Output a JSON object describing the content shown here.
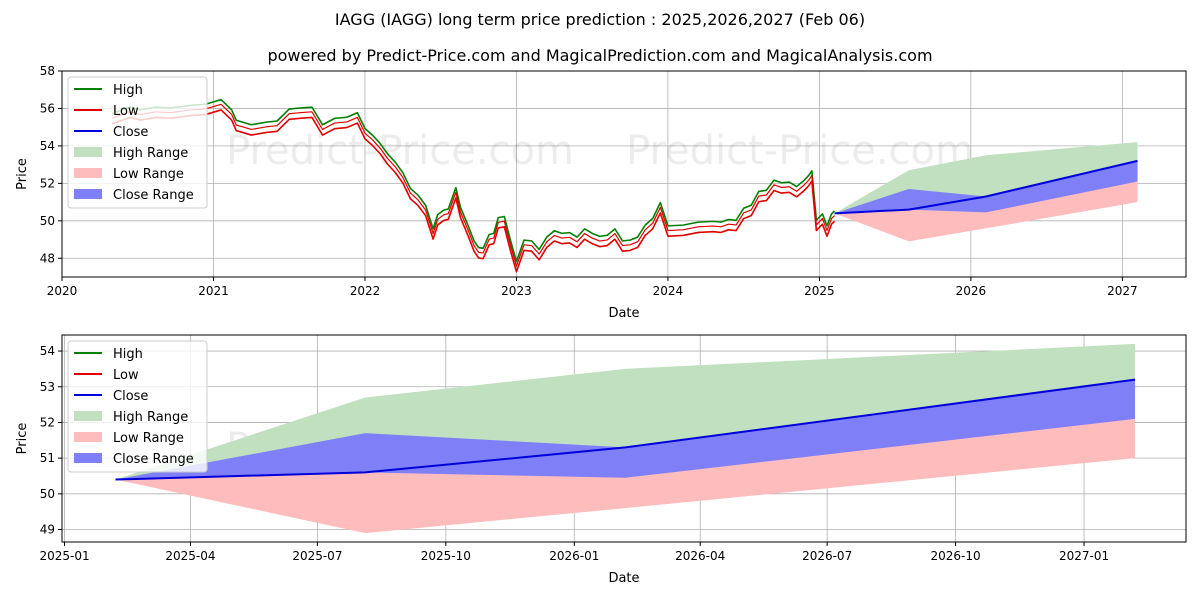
{
  "title": "IAGG (IAGG) long term price prediction : 2025,2026,2027 (Feb 06)",
  "subtitle": "powered by Predict-Price.com and MagicalPrediction.com and MagicalAnalysis.com",
  "watermark": "Predict-Price.com",
  "colors": {
    "high": "#008000",
    "low": "#e00000",
    "close": "#0000dd",
    "high_range": "#c0e0c0",
    "low_range": "#ffbcbc",
    "close_range": "#7f7ff8",
    "grid": "#b0b0b0"
  },
  "legend": {
    "items": [
      {
        "label": "High",
        "kind": "line",
        "color_key": "high"
      },
      {
        "label": "Low",
        "kind": "line",
        "color_key": "low"
      },
      {
        "label": "Close",
        "kind": "line",
        "color_key": "close"
      },
      {
        "label": "High Range",
        "kind": "patch",
        "color_key": "high_range"
      },
      {
        "label": "Low Range",
        "kind": "patch",
        "color_key": "low_range"
      },
      {
        "label": "Close Range",
        "kind": "patch",
        "color_key": "close_range"
      }
    ]
  },
  "chart_data": [
    {
      "type": "line",
      "id": "top",
      "xlabel": "Date",
      "ylabel": "Price",
      "xlim": [
        2020.0,
        2027.42
      ],
      "ylim": [
        47.0,
        58.0
      ],
      "xticks": [
        {
          "v": 2020,
          "label": "2020"
        },
        {
          "v": 2021,
          "label": "2021"
        },
        {
          "v": 2022,
          "label": "2022"
        },
        {
          "v": 2023,
          "label": "2023"
        },
        {
          "v": 2024,
          "label": "2024"
        },
        {
          "v": 2025,
          "label": "2025"
        },
        {
          "v": 2026,
          "label": "2026"
        },
        {
          "v": 2027,
          "label": "2027"
        }
      ],
      "yticks": [
        {
          "v": 48,
          "label": "48"
        },
        {
          "v": 50,
          "label": "50"
        },
        {
          "v": 52,
          "label": "52"
        },
        {
          "v": 54,
          "label": "54"
        },
        {
          "v": 56,
          "label": "56"
        },
        {
          "v": 58,
          "label": "58"
        }
      ],
      "history": {
        "x": [
          2020.33,
          2020.45,
          2020.52,
          2020.62,
          2020.72,
          2020.85,
          2020.95,
          2021.05,
          2021.12,
          2021.15,
          2021.25,
          2021.35,
          2021.42,
          2021.5,
          2021.58,
          2021.65,
          2021.72,
          2021.8,
          2021.88,
          2021.95,
          2022.0,
          2022.05,
          2022.1,
          2022.15,
          2022.2,
          2022.25,
          2022.3,
          2022.35,
          2022.4,
          2022.45,
          2022.48,
          2022.52,
          2022.55,
          2022.6,
          2022.63,
          2022.68,
          2022.72,
          2022.75,
          2022.78,
          2022.82,
          2022.85,
          2022.88,
          2022.92,
          2022.96,
          2023.0,
          2023.05,
          2023.1,
          2023.15,
          2023.2,
          2023.25,
          2023.3,
          2023.35,
          2023.4,
          2023.45,
          2023.5,
          2023.55,
          2023.6,
          2023.65,
          2023.7,
          2023.75,
          2023.8,
          2023.85,
          2023.9,
          2023.95,
          2024.0,
          2024.1,
          2024.2,
          2024.3,
          2024.35,
          2024.4,
          2024.45,
          2024.5,
          2024.55,
          2024.6,
          2024.65,
          2024.7,
          2024.75,
          2024.8,
          2024.85,
          2024.9,
          2024.93,
          2024.95,
          2024.98,
          2025.02,
          2025.05,
          2025.08,
          2025.1
        ],
        "close": [
          55.6,
          55.7,
          55.8,
          55.7,
          55.9,
          55.8,
          56.1,
          56.1,
          55.8,
          55.0,
          55.0,
          54.9,
          55.2,
          55.6,
          55.9,
          55.7,
          55.0,
          55.1,
          55.4,
          55.4,
          54.8,
          54.2,
          54.0,
          53.2,
          53.0,
          52.2,
          51.6,
          51.0,
          50.7,
          49.2,
          50.2,
          50.2,
          50.5,
          51.4,
          50.6,
          49.4,
          48.8,
          48.2,
          48.4,
          48.9,
          49.2,
          49.8,
          50.1,
          48.6,
          47.7,
          48.6,
          48.8,
          48.1,
          49.0,
          49.1,
          49.2,
          49.0,
          49.0,
          49.2,
          49.2,
          48.8,
          49.1,
          49.2,
          48.8,
          48.6,
          49.0,
          49.4,
          50.0,
          50.6,
          49.6,
          49.4,
          49.8,
          49.6,
          49.8,
          49.7,
          49.9,
          50.3,
          50.7,
          51.2,
          51.5,
          51.8,
          51.9,
          51.7,
          51.7,
          51.8,
          52.3,
          52.3,
          49.9,
          50.0,
          49.6,
          50.0,
          50.4
        ],
        "high_offset": 0.25,
        "low_offset": 0.3
      },
      "forecast": {
        "x": [
          2025.1,
          2025.59,
          2026.1,
          2027.1
        ],
        "close": [
          50.4,
          50.6,
          51.3,
          53.2
        ],
        "high_range_upper": [
          50.4,
          52.7,
          53.5,
          54.2
        ],
        "high_range_lower": [
          50.4,
          50.6,
          51.3,
          52.1
        ],
        "low_range_upper": [
          50.4,
          50.6,
          51.3,
          52.1
        ],
        "low_range_lower": [
          50.4,
          48.9,
          49.6,
          51.0
        ],
        "close_range_upper": [
          50.4,
          51.7,
          51.3,
          53.2
        ],
        "close_range_lower": [
          50.4,
          50.6,
          50.45,
          52.1
        ]
      }
    },
    {
      "type": "line",
      "id": "bottom",
      "xlabel": "Date",
      "ylabel": "Price",
      "xlim": [
        2024.995,
        2027.2
      ],
      "ylim": [
        48.65,
        54.45
      ],
      "xticks": [
        {
          "v": 2025.0,
          "label": "2025-01"
        },
        {
          "v": 2025.247,
          "label": "2025-04"
        },
        {
          "v": 2025.496,
          "label": "2025-07"
        },
        {
          "v": 2025.748,
          "label": "2025-10"
        },
        {
          "v": 2026.0,
          "label": "2026-01"
        },
        {
          "v": 2026.247,
          "label": "2026-04"
        },
        {
          "v": 2026.496,
          "label": "2026-07"
        },
        {
          "v": 2026.748,
          "label": "2026-10"
        },
        {
          "v": 2027.0,
          "label": "2027-01"
        }
      ],
      "yticks": [
        {
          "v": 49,
          "label": "49"
        },
        {
          "v": 50,
          "label": "50"
        },
        {
          "v": 51,
          "label": "51"
        },
        {
          "v": 52,
          "label": "52"
        },
        {
          "v": 53,
          "label": "53"
        },
        {
          "v": 54,
          "label": "54"
        }
      ],
      "forecast": {
        "x": [
          2025.1,
          2025.59,
          2026.1,
          2027.1
        ],
        "close": [
          50.4,
          50.6,
          51.3,
          53.2
        ],
        "high_range_upper": [
          50.4,
          52.7,
          53.5,
          54.2
        ],
        "high_range_lower": [
          50.4,
          50.6,
          51.3,
          52.1
        ],
        "low_range_upper": [
          50.4,
          50.6,
          51.3,
          52.1
        ],
        "low_range_lower": [
          50.4,
          48.9,
          49.6,
          51.0
        ],
        "close_range_upper": [
          50.4,
          51.7,
          51.3,
          53.2
        ],
        "close_range_lower": [
          50.4,
          50.6,
          50.45,
          52.1
        ]
      }
    }
  ]
}
